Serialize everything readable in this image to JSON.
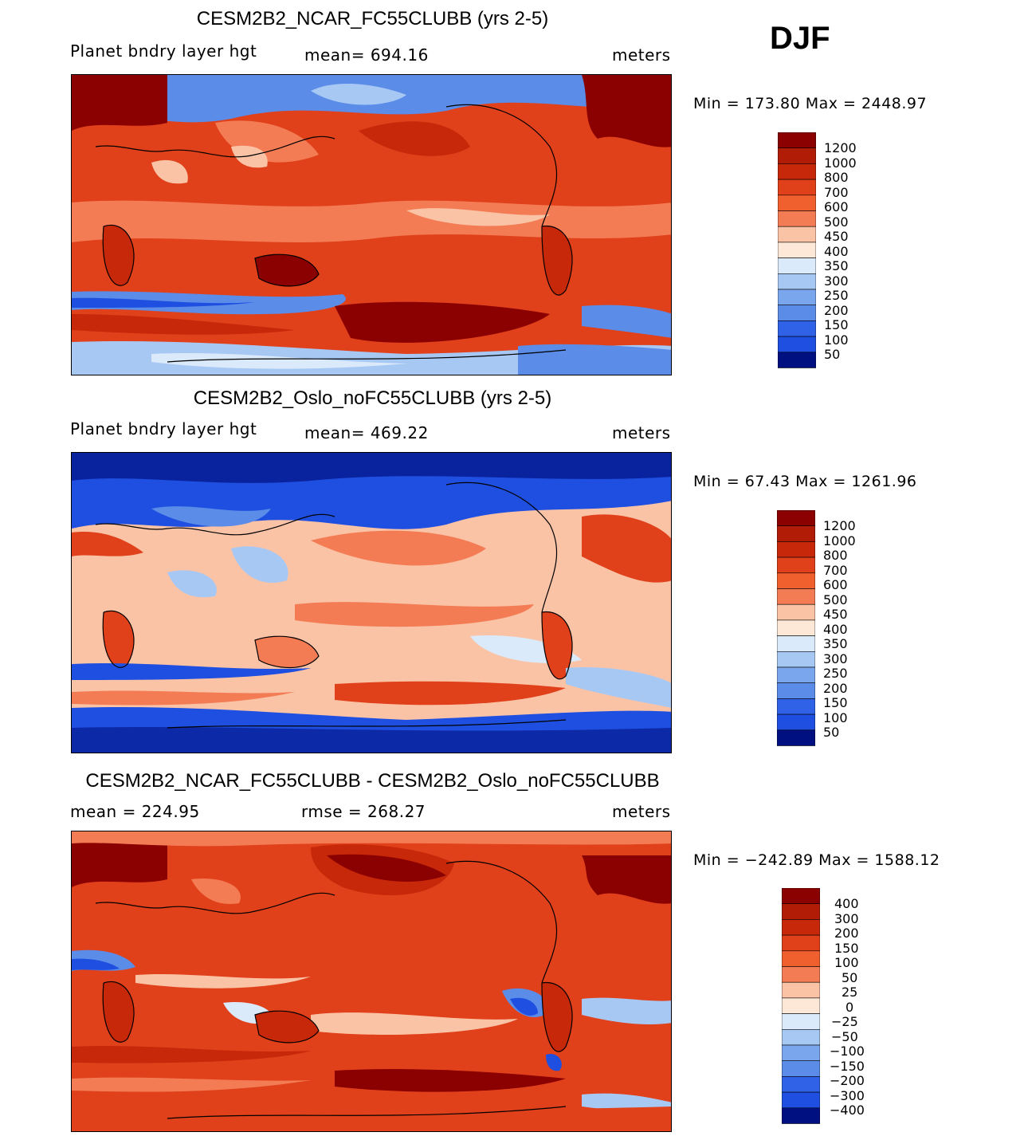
{
  "season": "DJF",
  "colors": {
    "dark_red": "#8b0000",
    "red": "#c8280a",
    "orange_red": "#e0401a",
    "light_orange": "#f37c55",
    "peach": "#fbc3a6",
    "cream": "#fde8d8",
    "pale_blue": "#dbeafb",
    "light_blue": "#a8c8f4",
    "blue": "#5a8ce8",
    "strong_blue": "#1f4fe0",
    "navy": "#001080"
  },
  "panels": [
    {
      "title": "CESM2B2_NCAR_FC55CLUBB (yrs 2-5)",
      "variable": "Planet bndry layer hgt",
      "stat": "mean= 694.16",
      "units": "meters",
      "minmax": "Min = 173.80 Max = 2448.97",
      "colorbar": [
        "1200",
        "1000",
        "800",
        "700",
        "600",
        "500",
        "450",
        "400",
        "350",
        "300",
        "250",
        "200",
        "150",
        "100",
        "50"
      ],
      "dominant": "warm"
    },
    {
      "title": "CESM2B2_Oslo_noFC55CLUBB (yrs 2-5)",
      "variable": "Planet bndry layer hgt",
      "stat": "mean= 469.22",
      "units": "meters",
      "minmax": "Min =  67.43 Max = 1261.96",
      "colorbar": [
        "1200",
        "1000",
        "800",
        "700",
        "600",
        "500",
        "450",
        "400",
        "350",
        "300",
        "250",
        "200",
        "150",
        "100",
        "50"
      ],
      "dominant": "mixed"
    },
    {
      "title": "CESM2B2_NCAR_FC55CLUBB - CESM2B2_Oslo_noFC55CLUBB",
      "variable": "mean = 224.95",
      "stat": "rmse = 268.27",
      "units": "meters",
      "minmax": "Min = −242.89 Max = 1588.12",
      "colorbar": [
        "400",
        "300",
        "200",
        "150",
        "100",
        "50",
        "25",
        "0",
        "−25",
        "−50",
        "−100",
        "−150",
        "−200",
        "−300",
        "−400"
      ],
      "dominant": "diff"
    }
  ]
}
